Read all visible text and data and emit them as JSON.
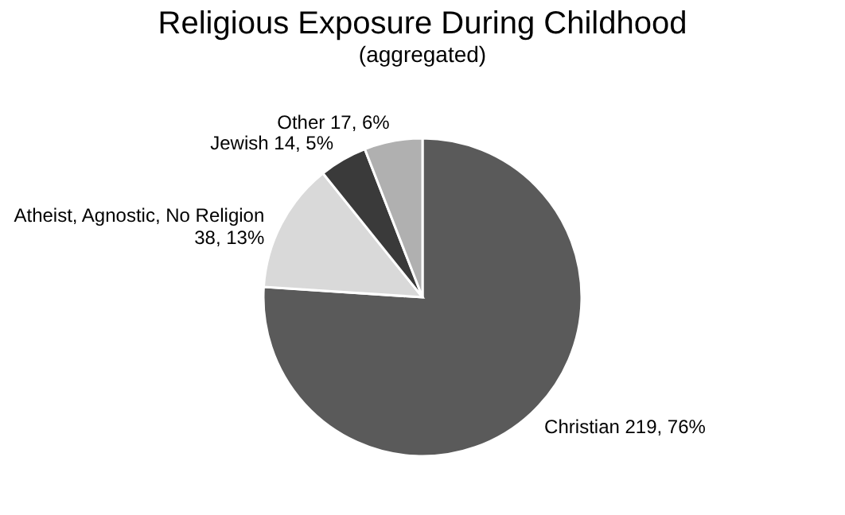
{
  "chart_data": {
    "type": "pie",
    "title": "Religious Exposure During Childhood",
    "subtitle": "(aggregated)",
    "categories": [
      "Christian",
      "Atheist, Agnostic, No Religion",
      "Jewish",
      "Other"
    ],
    "values": [
      219,
      38,
      14,
      17
    ],
    "value_labels": [
      "219, 76%",
      "38, 13%",
      "14, 5%",
      "17, 6%"
    ],
    "colors": [
      "#5a5a5a",
      "#d9d9d9",
      "#3a3a3a",
      "#b0b0b0"
    ],
    "legend": false
  }
}
